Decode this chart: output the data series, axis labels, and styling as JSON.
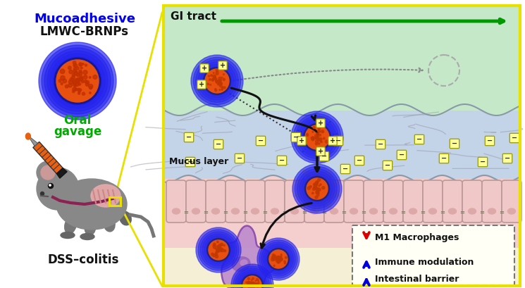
{
  "bg_color": "#ffffff",
  "left_panel": {
    "mucoadhesive_text": "Mucoadhesive",
    "lmwc_text": "LMWC-BRNPs",
    "oral_text": "Oral\ngavage",
    "dss_text": "DSS–colitis",
    "mucoadhesive_color": "#0000ee",
    "lmwc_color": "#111111",
    "oral_color": "#00aa00",
    "dss_color": "#111111"
  },
  "right_panel": {
    "gi_bg": "#c5e8c8",
    "mucus_bg": "#c4d4e8",
    "cell_bg": "#f5cece",
    "bottom_bg": "#f5f0d5",
    "border_color": "#e8e000",
    "gi_tract_text": "GI tract",
    "gi_arrow_color": "#009900",
    "mucus_layer_text": "Mucus layer"
  },
  "legend": {
    "m1_text": "M1 Macrophages",
    "immune_text": "Immune modulation",
    "barrier_text": "Intestinal barrier",
    "m1_color": "#dd0000",
    "immune_color": "#0000dd",
    "barrier_color": "#0000dd",
    "bg": "#fffff5",
    "border": "#777777"
  },
  "np_core": "#e85010",
  "np_glow": "#2222ee",
  "np_ring": "#222266",
  "np_dot": "#c03800",
  "charge_bg": "#ffff99",
  "charge_border": "#999900",
  "charge_text": "#222200"
}
